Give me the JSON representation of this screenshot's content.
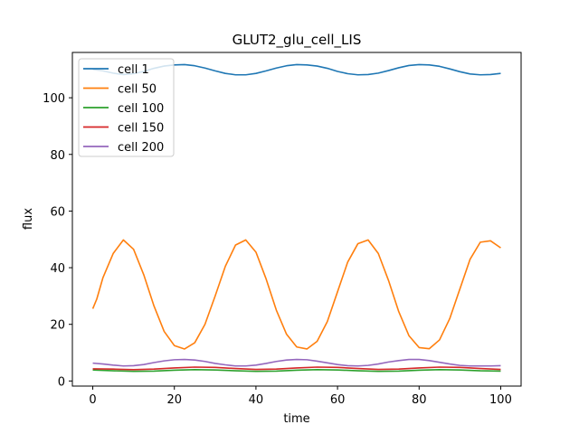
{
  "chart_data": {
    "type": "line",
    "title": "GLUT2_glu_cell_LIS",
    "xlabel": "time",
    "ylabel": "flux",
    "xlim": [
      -5,
      105
    ],
    "ylim": [
      -1.8,
      116
    ],
    "xticks": [
      0,
      20,
      40,
      60,
      80,
      100
    ],
    "yticks": [
      0,
      20,
      40,
      60,
      80,
      100
    ],
    "grid": false,
    "legend_position": "top-left",
    "series": [
      {
        "name": "cell 1",
        "color": "#1f77b4",
        "x": [
          0,
          2.5,
          5,
          7.5,
          10,
          12.5,
          15,
          17.5,
          20,
          22.5,
          25,
          27.5,
          30,
          32.5,
          35,
          37.5,
          40,
          42.5,
          45,
          47.5,
          50,
          52.5,
          55,
          57.5,
          60,
          62.5,
          65,
          67.5,
          70,
          72.5,
          75,
          77.5,
          80,
          82.5,
          85,
          87.5,
          90,
          92.5,
          95,
          97.5,
          100
        ],
        "values": [
          110.0,
          109.5,
          108.7,
          108.2,
          108.5,
          109.3,
          110.4,
          111.2,
          111.6,
          111.7,
          111.3,
          110.5,
          109.5,
          108.6,
          108.1,
          108.1,
          108.6,
          109.5,
          110.5,
          111.3,
          111.7,
          111.6,
          111.2,
          110.4,
          109.3,
          108.5,
          108.1,
          108.2,
          108.7,
          109.6,
          110.6,
          111.4,
          111.7,
          111.6,
          111.1,
          110.2,
          109.2,
          108.4,
          108.1,
          108.2,
          108.6
        ]
      },
      {
        "name": "cell 50",
        "color": "#ff7f0e",
        "x": [
          0,
          1,
          2.5,
          5,
          7.5,
          10,
          12.5,
          15,
          17.5,
          20,
          22.5,
          25,
          27.5,
          30,
          32.5,
          35,
          37.5,
          40,
          42.5,
          45,
          47.5,
          50,
          52.5,
          55,
          57.5,
          60,
          62.5,
          65,
          67.5,
          70,
          72.5,
          75,
          77.5,
          80,
          82.5,
          85,
          87.5,
          90,
          92.5,
          95,
          97.5,
          100
        ],
        "values": [
          25.5,
          29.0,
          36.5,
          45.0,
          49.8,
          46.5,
          37.5,
          26.5,
          17.5,
          12.5,
          11.3,
          13.5,
          20.0,
          30.0,
          40.5,
          48.0,
          49.8,
          45.5,
          36.0,
          25.0,
          16.5,
          12.0,
          11.3,
          14.0,
          21.0,
          31.5,
          42.0,
          48.5,
          49.8,
          45.0,
          35.5,
          24.5,
          16.0,
          11.8,
          11.4,
          14.5,
          22.0,
          32.5,
          43.0,
          49.0,
          49.5,
          47.0
        ]
      },
      {
        "name": "cell 100",
        "color": "#2ca02c",
        "x": [
          0,
          5,
          10,
          15,
          20,
          25,
          30,
          35,
          40,
          45,
          50,
          55,
          60,
          65,
          70,
          75,
          80,
          85,
          90,
          95,
          100
        ],
        "values": [
          3.9,
          3.6,
          3.4,
          3.5,
          3.8,
          4.0,
          3.9,
          3.6,
          3.4,
          3.5,
          3.8,
          4.0,
          3.9,
          3.6,
          3.4,
          3.5,
          3.8,
          4.0,
          3.9,
          3.6,
          3.5
        ]
      },
      {
        "name": "cell 150",
        "color": "#d62728",
        "x": [
          0,
          5,
          10,
          15,
          20,
          25,
          30,
          35,
          40,
          45,
          50,
          55,
          60,
          65,
          70,
          75,
          80,
          85,
          90,
          95,
          100
        ],
        "values": [
          4.3,
          4.2,
          4.0,
          4.2,
          4.6,
          4.9,
          4.8,
          4.4,
          4.1,
          4.2,
          4.6,
          4.9,
          4.8,
          4.4,
          4.1,
          4.2,
          4.6,
          4.9,
          4.8,
          4.4,
          4.1
        ]
      },
      {
        "name": "cell 200",
        "color": "#9467bd",
        "x": [
          0,
          2.5,
          5,
          7.5,
          10,
          12.5,
          15,
          17.5,
          20,
          22.5,
          25,
          27.5,
          30,
          32.5,
          35,
          37.5,
          40,
          42.5,
          45,
          47.5,
          50,
          52.5,
          55,
          57.5,
          60,
          62.5,
          65,
          67.5,
          70,
          72.5,
          75,
          77.5,
          80,
          82.5,
          85,
          87.5,
          90,
          92.5,
          95,
          97.5,
          100
        ],
        "values": [
          6.3,
          6.0,
          5.6,
          5.3,
          5.4,
          5.8,
          6.5,
          7.1,
          7.5,
          7.6,
          7.4,
          6.9,
          6.2,
          5.7,
          5.3,
          5.3,
          5.6,
          6.2,
          6.9,
          7.4,
          7.6,
          7.5,
          7.0,
          6.4,
          5.8,
          5.4,
          5.3,
          5.5,
          6.0,
          6.7,
          7.2,
          7.6,
          7.6,
          7.2,
          6.6,
          6.0,
          5.5,
          5.3,
          5.3,
          5.3,
          5.4
        ]
      }
    ]
  }
}
